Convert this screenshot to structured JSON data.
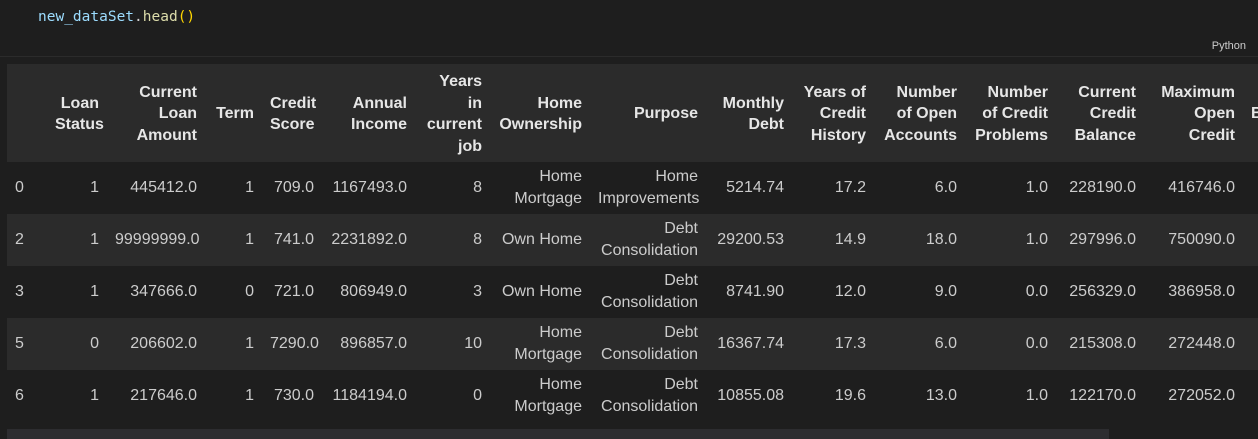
{
  "code": {
    "var": "new_dataSet",
    "dot": ".",
    "method": "head",
    "open_paren": "(",
    "close_paren": ")"
  },
  "language_label": "Python",
  "table": {
    "index_header": "",
    "columns": [
      "Loan Status",
      "Current Loan Amount",
      "Term",
      "Credit Score",
      "Annual Income",
      "Years in current job",
      "Home Ownership",
      "Purpose",
      "Monthly Debt",
      "Years of Credit History",
      "Number of Open Accounts",
      "Number of Credit Problems",
      "Current Credit Balance",
      "Maximum Open Credit",
      "B"
    ],
    "rows": [
      {
        "index": "0",
        "cells": [
          "1",
          "445412.0",
          "1",
          "709.0",
          "1167493.0",
          "8",
          "Home Mortgage",
          "Home Improvements",
          "5214.74",
          "17.2",
          "6.0",
          "1.0",
          "228190.0",
          "416746.0",
          ""
        ]
      },
      {
        "index": "2",
        "cells": [
          "1",
          "99999999.0",
          "1",
          "741.0",
          "2231892.0",
          "8",
          "Own Home",
          "Debt Consolidation",
          "29200.53",
          "14.9",
          "18.0",
          "1.0",
          "297996.0",
          "750090.0",
          ""
        ]
      },
      {
        "index": "3",
        "cells": [
          "1",
          "347666.0",
          "0",
          "721.0",
          "806949.0",
          "3",
          "Own Home",
          "Debt Consolidation",
          "8741.90",
          "12.0",
          "9.0",
          "0.0",
          "256329.0",
          "386958.0",
          ""
        ]
      },
      {
        "index": "5",
        "cells": [
          "0",
          "206602.0",
          "1",
          "7290.0",
          "896857.0",
          "10",
          "Home Mortgage",
          "Debt Consolidation",
          "16367.74",
          "17.3",
          "6.0",
          "0.0",
          "215308.0",
          "272448.0",
          ""
        ]
      },
      {
        "index": "6",
        "cells": [
          "1",
          "217646.0",
          "1",
          "730.0",
          "1184194.0",
          "0",
          "Home Mortgage",
          "Debt Consolidation",
          "10855.08",
          "19.6",
          "13.0",
          "1.0",
          "122170.0",
          "272052.0",
          ""
        ]
      }
    ]
  },
  "colors": {
    "background": "#1e1e1e",
    "header_background": "#2b2b2b",
    "stripe": "#2b2b2b",
    "code_variable": "#9cdcfe",
    "code_function": "#dcdcaa",
    "code_paren": "#ffd700"
  }
}
